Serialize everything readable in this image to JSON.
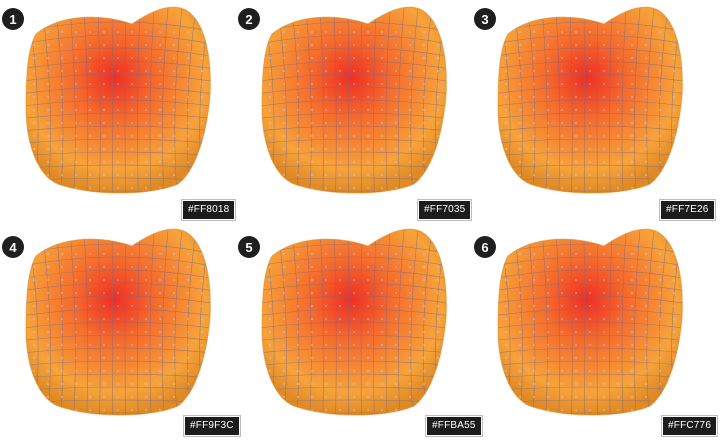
{
  "panels": [
    {
      "number": "1",
      "color_code": "#FF8018"
    },
    {
      "number": "2",
      "color_code": "#FF7035"
    },
    {
      "number": "3",
      "color_code": "#FF7E26"
    },
    {
      "number": "4",
      "color_code": "#FF9F3C"
    },
    {
      "number": "5",
      "color_code": "#FFBA55"
    },
    {
      "number": "6",
      "color_code": "#FFC776"
    }
  ],
  "colors": {
    "outer": "#f7a33a",
    "edge": "#e08a25",
    "hot": "#ef2e24",
    "warm": "#f56a2c",
    "mesh_line": "#7a6a8a",
    "mesh_point": "#c9c4ff",
    "step_badge": "#1f1f1f",
    "tag_bg": "#1c1c1c"
  }
}
